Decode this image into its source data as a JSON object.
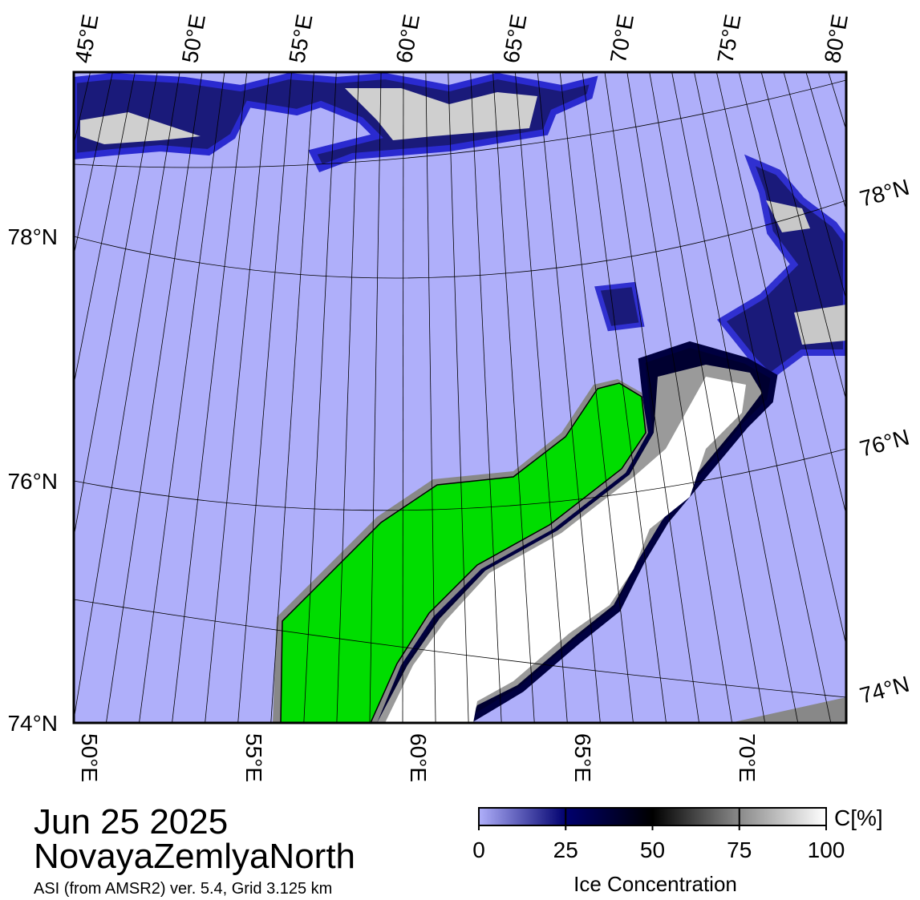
{
  "header": {
    "date": "Jun 25 2025",
    "region": "NovayaZemlyaNorth",
    "source": "ASI (from AMSR2) ver. 5.4,  Grid 3.125 km"
  },
  "map": {
    "top_labels": [
      "45°E",
      "50°E",
      "55°E",
      "60°E",
      "65°E",
      "70°E",
      "75°E",
      "80°E"
    ],
    "bottom_labels": [
      "50°E",
      "55°E",
      "60°E",
      "65°E",
      "70°E"
    ],
    "left_labels": [
      "78°N",
      "76°N",
      "74°N"
    ],
    "right_labels": [
      "78°N",
      "76°N",
      "74°N"
    ]
  },
  "colorbar": {
    "ticks": [
      0,
      25,
      50,
      75,
      100
    ],
    "unit": "C[%]",
    "label": "Ice Concentration"
  }
}
